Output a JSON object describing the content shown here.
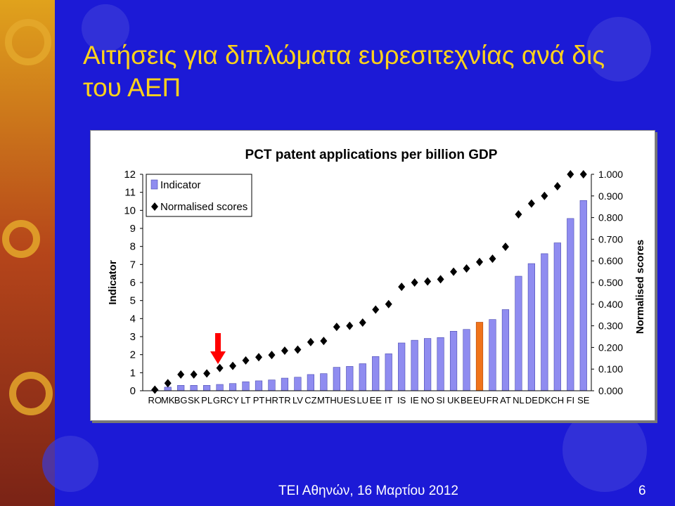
{
  "slide": {
    "title_line1": "Αιτήσεις για διπλώματα ευρεσιτεχνίας ανά δις",
    "title_line2": "του ΑΕΠ",
    "footer": "ΤΕΙ Αθηνών, 16 Μαρτίου 2012",
    "page_number": "6",
    "colors": {
      "background": "#1c1ad6",
      "title": "#ffd21a",
      "bar": "#8f8cf0",
      "highlight_bar": "#f0731a",
      "marker": "#000000",
      "arrow": "#ff0000"
    }
  },
  "chart_data": {
    "type": "bar",
    "title": "PCT patent applications per billion GDP",
    "ylabel": "Indicator",
    "y2label": "Normalised scores",
    "ylim": [
      0,
      12
    ],
    "y2lim": [
      0,
      1
    ],
    "yticks": [
      "0",
      "1",
      "2",
      "3",
      "4",
      "5",
      "6",
      "7",
      "8",
      "9",
      "10",
      "11",
      "12"
    ],
    "y2ticks": [
      "0.000",
      "0.100",
      "0.200",
      "0.300",
      "0.400",
      "0.500",
      "0.600",
      "0.700",
      "0.800",
      "0.900",
      "1.000"
    ],
    "grid": false,
    "legend_position": "top-left",
    "highlight_category": "EU",
    "arrow_category": "GR",
    "categories": [
      "RO",
      "MK",
      "BG",
      "SK",
      "PL",
      "GR",
      "CY",
      "LT",
      "PT",
      "HR",
      "TR",
      "LV",
      "CZ",
      "MT",
      "HU",
      "ES",
      "LU",
      "EE",
      "IT",
      "IS",
      "IE",
      "NO",
      "SI",
      "UK",
      "BE",
      "EU",
      "FR",
      "AT",
      "NL",
      "DE",
      "DK",
      "CH",
      "FI",
      "SE"
    ],
    "series": [
      {
        "name": "Indicator",
        "kind": "bar",
        "values": [
          0.05,
          0.2,
          0.3,
          0.3,
          0.3,
          0.35,
          0.4,
          0.5,
          0.55,
          0.6,
          0.7,
          0.75,
          0.9,
          0.95,
          1.3,
          1.35,
          1.5,
          1.9,
          2.05,
          2.65,
          2.8,
          2.9,
          2.95,
          3.3,
          3.4,
          3.8,
          3.95,
          4.5,
          6.35,
          7.05,
          7.6,
          8.2,
          9.55,
          10.55
        ]
      },
      {
        "name": "Normalised scores",
        "kind": "scatter",
        "axis": "y2",
        "values": [
          0.005,
          0.035,
          0.075,
          0.075,
          0.08,
          0.105,
          0.115,
          0.14,
          0.155,
          0.165,
          0.185,
          0.19,
          0.225,
          0.23,
          0.295,
          0.3,
          0.315,
          0.375,
          0.4,
          0.48,
          0.5,
          0.505,
          0.515,
          0.55,
          0.565,
          0.595,
          0.61,
          0.665,
          0.815,
          0.865,
          0.9,
          0.945,
          1.0,
          1.0
        ]
      }
    ]
  }
}
